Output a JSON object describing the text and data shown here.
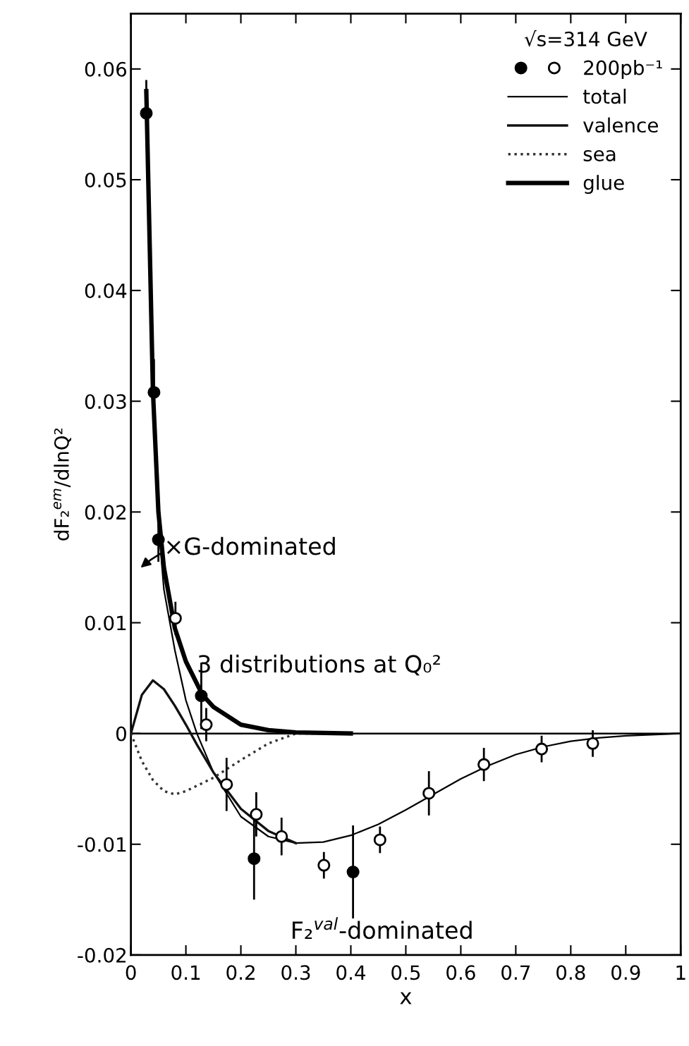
{
  "chart_data": {
    "type": "line",
    "xlabel": "x",
    "ylabel": "dF₂$^{em}$/dlnQ²",
    "legend_title": "√s=314 GeV",
    "xlim": [
      0,
      1
    ],
    "ylim": [
      -0.02,
      0.065
    ],
    "xticks": [
      0,
      0.1,
      0.2,
      0.3,
      0.4,
      0.5,
      0.6,
      0.7,
      0.8,
      0.9,
      1
    ],
    "yticks": [
      {
        "value": -0.02,
        "label": "-0.02"
      },
      {
        "value": -0.01,
        "label": "-0.01"
      },
      0,
      0.01,
      0.02,
      0.03,
      0.04,
      0.05,
      0.06
    ],
    "grid": false,
    "legend": "top right",
    "ref_lines": [
      {
        "axis": "y",
        "value": 0,
        "label": null,
        "color": "#000000",
        "line_style": "solid"
      }
    ],
    "annotations": [
      "×G-dominated",
      "3 distributions at Q₀²",
      "F₂$^{val}$-dominated"
    ],
    "series": [
      {
        "type": "scatter",
        "marker": "circle",
        "color": "#000000",
        "x": [
          0.028,
          0.042,
          0.05,
          0.128,
          0.224,
          0.404
        ],
        "values": [
          0.056,
          0.0308,
          0.0175,
          0.0034,
          -0.0113,
          -0.0125
        ],
        "errors": [
          0.003,
          0.003,
          0.002,
          0.003,
          0.0037,
          0.0042
        ]
      },
      {
        "name": "200pb⁻¹",
        "type": "scatter",
        "marker": "circle",
        "color": "#ffffff",
        "x": [
          0.081,
          0.137,
          0.174,
          0.228,
          0.274,
          0.351,
          0.453,
          0.542,
          0.642,
          0.747,
          0.84
        ],
        "values": [
          0.0104,
          0.0008,
          -0.0046,
          -0.0073,
          -0.0093,
          -0.0119,
          -0.0096,
          -0.0054,
          -0.0028,
          -0.0014,
          -0.0009
        ],
        "errors": [
          0.0015,
          0.0015,
          0.0024,
          0.002,
          0.0017,
          0.0012,
          0.0012,
          0.002,
          0.0015,
          0.0012,
          0.0012
        ]
      },
      {
        "name": "total",
        "line_style": "solid",
        "color": "#000000",
        "x": [
          0.03,
          0.04,
          0.05,
          0.06,
          0.08,
          0.1,
          0.12,
          0.15,
          0.2,
          0.25,
          0.3,
          0.35,
          0.4,
          0.45,
          0.5,
          0.55,
          0.6,
          0.65,
          0.7,
          0.75,
          0.8,
          0.85,
          0.9,
          1.0
        ],
        "values": [
          0.055,
          0.03,
          0.019,
          0.013,
          0.0075,
          0.003,
          0,
          -0.0035,
          -0.0075,
          -0.0093,
          -0.0099,
          -0.0098,
          -0.0092,
          -0.0082,
          -0.0069,
          -0.0055,
          -0.0041,
          -0.0029,
          -0.0019,
          -0.0012,
          -0.0007,
          -0.0004,
          -0.0002,
          0
        ]
      },
      {
        "name": "valence",
        "line_style": "solid",
        "color": "#111111",
        "x": [
          0,
          0.02,
          0.04,
          0.06,
          0.08,
          0.1,
          0.12,
          0.15,
          0.2,
          0.25,
          0.3
        ],
        "values": [
          0,
          0.0035,
          0.0048,
          0.004,
          0.0025,
          0.0008,
          -0.001,
          -0.0035,
          -0.0068,
          -0.0088,
          -0.0099
        ]
      },
      {
        "name": "sea",
        "line_style": "dotted",
        "color": "#333333",
        "x": [
          0,
          0.02,
          0.04,
          0.06,
          0.08,
          0.1,
          0.15,
          0.2,
          0.25,
          0.3,
          0.35
        ],
        "values": [
          0,
          -0.0025,
          -0.0042,
          -0.0052,
          -0.0055,
          -0.0052,
          -0.004,
          -0.0024,
          -0.0009,
          0,
          0
        ]
      },
      {
        "name": "glue",
        "line_style": "solid",
        "color": "#000000",
        "x": [
          0.028,
          0.04,
          0.05,
          0.06,
          0.08,
          0.1,
          0.13,
          0.15,
          0.2,
          0.25,
          0.3,
          0.4
        ],
        "values": [
          0.058,
          0.031,
          0.02,
          0.015,
          0.0095,
          0.0065,
          0.0035,
          0.0024,
          0.0008,
          0.0003,
          0.0001,
          0
        ]
      }
    ]
  }
}
